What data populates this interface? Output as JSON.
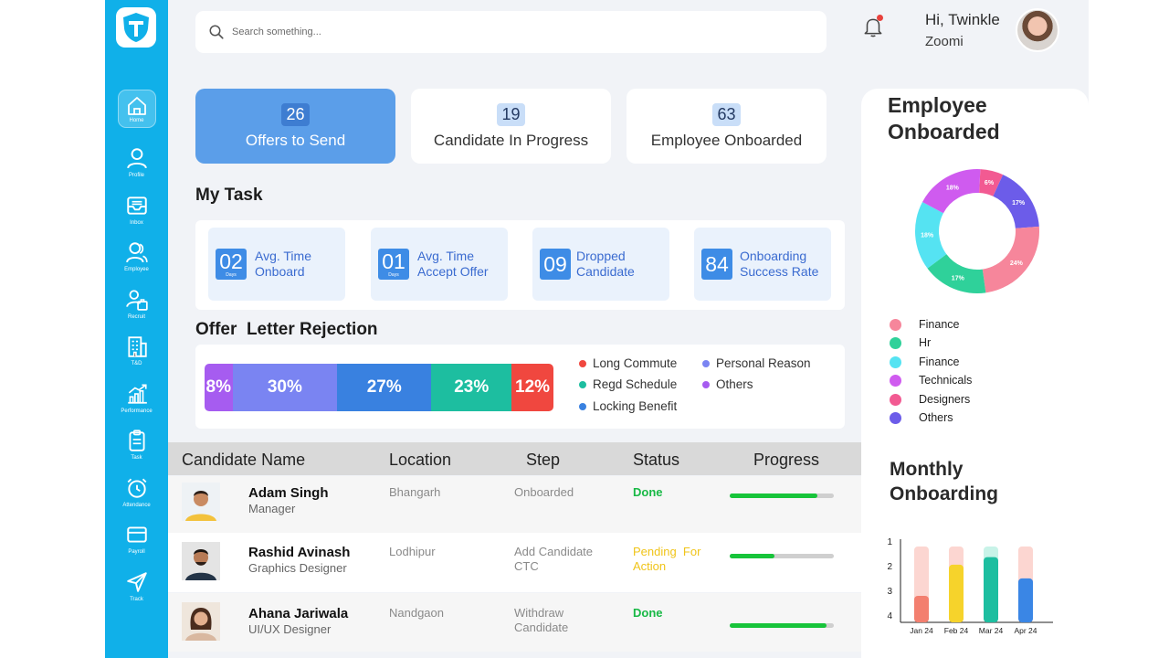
{
  "header": {
    "search_placeholder": "Search something...",
    "greeting": "Hi, Twinkle",
    "company": "Zoomi"
  },
  "sidebar": {
    "items": [
      {
        "label": "Home",
        "icon": "home-icon"
      },
      {
        "label": "Profile",
        "icon": "profile-icon"
      },
      {
        "label": "Inbox",
        "icon": "inbox-icon"
      },
      {
        "label": "Employee",
        "icon": "employee-icon"
      },
      {
        "label": "Recruit",
        "icon": "recruit-icon"
      },
      {
        "label": "T&D",
        "icon": "building-icon"
      },
      {
        "label": "Performance",
        "icon": "performance-icon"
      },
      {
        "label": "Task",
        "icon": "task-icon"
      },
      {
        "label": "Attendance",
        "icon": "alarm-icon"
      },
      {
        "label": "Payroll",
        "icon": "card-icon"
      },
      {
        "label": "Track",
        "icon": "send-icon"
      }
    ]
  },
  "stats": [
    {
      "value": "26",
      "label": "Offers to Send"
    },
    {
      "value": "19",
      "label": "Candidate In Progress"
    },
    {
      "value": "63",
      "label": "Employee Onboarded"
    }
  ],
  "tasks": {
    "title": "My Task",
    "items": [
      {
        "value": "02",
        "unit": "Days",
        "line1": "Avg. Time",
        "line2": "Onboard"
      },
      {
        "value": "01",
        "unit": "Days",
        "line1": "Avg. Time",
        "line2": "Accept Offer"
      },
      {
        "value": "09",
        "unit": "",
        "line1": "Dropped",
        "line2": "Candidate"
      },
      {
        "value": "84",
        "unit": "",
        "line1": "Onboarding",
        "line2": "Success Rate"
      }
    ]
  },
  "rejection": {
    "title": "Offer  Letter Rejection",
    "segments": [
      {
        "label": "8%",
        "value": 8,
        "color": "#a65cf0"
      },
      {
        "label": "30%",
        "value": 30,
        "color": "#7a84f2"
      },
      {
        "label": "27%",
        "value": 27,
        "color": "#3981e0"
      },
      {
        "label": "23%",
        "value": 23,
        "color": "#1dbea0"
      },
      {
        "label": "12%",
        "value": 12,
        "color": "#f0473f"
      }
    ],
    "legend": [
      {
        "label": "Long Commute",
        "color": "#f0473f"
      },
      {
        "label": "Personal Reason",
        "color": "#7a84f2"
      },
      {
        "label": "Regd Schedule",
        "color": "#1dbea0"
      },
      {
        "label": "Others",
        "color": "#a65cf0"
      },
      {
        "label": "Locking Benefit",
        "color": "#3981e0"
      }
    ]
  },
  "table": {
    "headers": [
      "Candidate Name",
      "Location",
      "Step",
      "Status",
      "Progress"
    ],
    "rows": [
      {
        "name": "Adam Singh",
        "role": "Manager",
        "location": "Bhangarh",
        "step1": "Onboarded",
        "step2": "",
        "status1": "Done",
        "status2": "",
        "status_type": "done",
        "progress": 0.84
      },
      {
        "name": "Rashid Avinash",
        "role": "Graphics Designer",
        "location": "Lodhipur",
        "step1": "Add Candidate",
        "step2": "CTC",
        "status1": "Pending  For",
        "status2": "Action",
        "status_type": "pending",
        "progress": 0.43
      },
      {
        "name": "Ahana Jariwala",
        "role": "UI/UX Designer",
        "location": "Nandgaon",
        "step1": "Withdraw",
        "step2": "Candidate",
        "status1": "Done",
        "status2": "",
        "status_type": "done",
        "progress": 0.93
      }
    ]
  },
  "onboarded": {
    "title1": "Employee",
    "title2": "Onboarded",
    "legend": [
      {
        "label": "Finance",
        "color": "#f6869b"
      },
      {
        "label": "Hr",
        "color": "#2fd19a"
      },
      {
        "label": "Finance",
        "color": "#55e3f2"
      },
      {
        "label": "Technicals",
        "color": "#cf5bef"
      },
      {
        "label": "Designers",
        "color": "#f25a92"
      },
      {
        "label": "Others",
        "color": "#6c5ce9"
      }
    ]
  },
  "chart_data": {
    "type": "pie",
    "slices": [
      {
        "label": "6%",
        "value": 6,
        "color": "#f25a92"
      },
      {
        "label": "17%",
        "value": 17,
        "color": "#6c5ce9"
      },
      {
        "label": "24%",
        "value": 24,
        "color": "#f6869b"
      },
      {
        "label": "17%",
        "value": 17,
        "color": "#2fd19a"
      },
      {
        "label": "18%",
        "value": 18,
        "color": "#55e3f2"
      },
      {
        "label": "18%",
        "value": 18,
        "color": "#cf5bef"
      }
    ]
  },
  "monthly": {
    "title1": "Monthly",
    "title2": "Onboarding",
    "type": "bar",
    "categories": [
      "Jan 24",
      "Feb 24",
      "Mar 24",
      "Apr 24"
    ],
    "y_ticks": [
      "1",
      "2",
      "3",
      "4"
    ],
    "values": [
      0.35,
      0.76,
      0.86,
      0.58
    ],
    "colors": [
      "#f37f6f",
      "#f6d32b",
      "#1dbea0",
      "#3a86e5"
    ],
    "bg_colors": [
      "#fcd6d1",
      "#fcd6d1",
      "#c8f3e8",
      "#fcd6d1"
    ]
  }
}
